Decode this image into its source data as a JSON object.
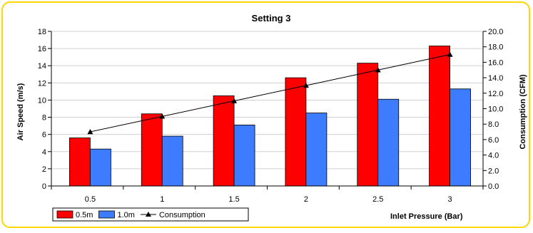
{
  "chart_data": {
    "type": "bar",
    "title": "Setting 3",
    "xlabel": "Inlet Pressure (Bar)",
    "ylabel": "Air Speed (m/s)",
    "y2label": "Consumption (CFM)",
    "categories": [
      "0.5",
      "1",
      "1.5",
      "2",
      "2.5",
      "3"
    ],
    "ylim": [
      0,
      18
    ],
    "y2lim": [
      0,
      20
    ],
    "yticks": [
      "0",
      "2",
      "4",
      "6",
      "8",
      "10",
      "12",
      "14",
      "16",
      "18"
    ],
    "y2ticks": [
      "0.0",
      "2.0",
      "4.0",
      "6.0",
      "8.0",
      "10.0",
      "12.0",
      "14.0",
      "16.0",
      "18.0",
      "20.0"
    ],
    "grid": true,
    "legend_position": "bottom-left",
    "series": [
      {
        "name": "0.5m",
        "type": "bar",
        "axis": "left",
        "color": "#ff0000",
        "values": [
          5.6,
          8.4,
          10.5,
          12.6,
          14.3,
          16.3
        ]
      },
      {
        "name": "1.0m",
        "type": "bar",
        "axis": "left",
        "color": "#3d7bff",
        "values": [
          4.3,
          5.8,
          7.1,
          8.5,
          10.1,
          11.3
        ]
      },
      {
        "name": "Consumption",
        "type": "line",
        "axis": "right",
        "color": "#000000",
        "values": [
          7.0,
          9.0,
          11.0,
          13.0,
          15.0,
          17.0
        ]
      }
    ]
  }
}
